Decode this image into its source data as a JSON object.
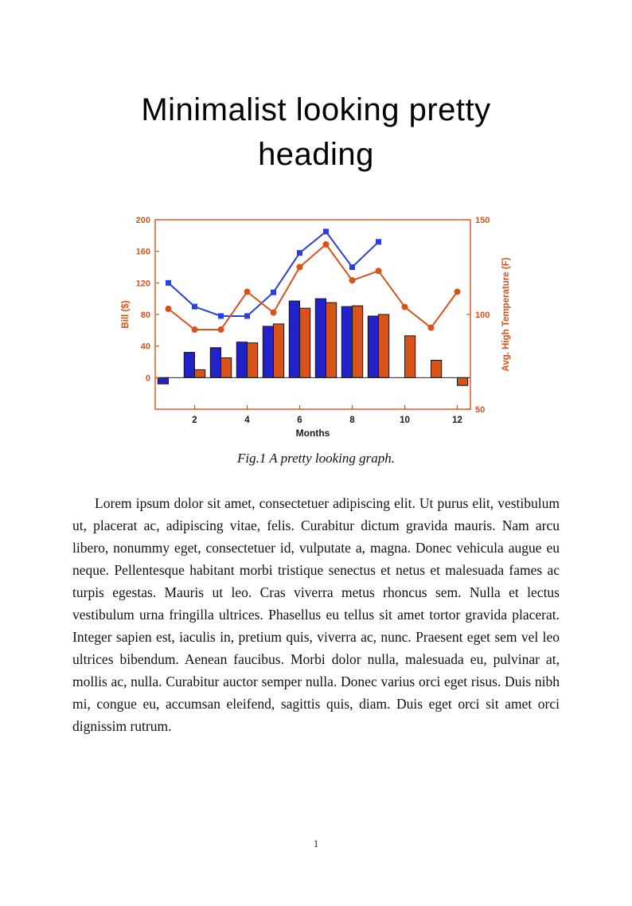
{
  "page": {
    "heading": "Minimalist looking pretty heading",
    "figure_caption": "Fig.1 A pretty looking graph.",
    "body": "Lorem ipsum dolor sit amet, consectetuer adipiscing elit. Ut purus elit, vestibulum ut, placerat ac, adipiscing vitae, felis. Curabitur dictum gravida mauris. Nam arcu libero, nonummy eget, consectetuer id, vulputate a, magna. Donec vehicula augue eu neque. Pellentesque habitant morbi tristique senectus et netus et malesuada fames ac turpis egestas. Mauris ut leo. Cras viverra metus rhoncus sem. Nulla et lectus vestibulum urna fringilla ultrices. Phasellus eu tellus sit amet tortor gravida placerat. Integer sapien est, iaculis in, pretium quis, viverra ac, nunc. Praesent eget sem vel leo ultrices bibendum. Aenean faucibus. Morbi dolor nulla, malesuada eu, pulvinar at, mollis ac, nulla. Curabitur auctor semper nulla. Donec varius orci eget risus. Duis nibh mi, congue eu, accumsan eleifend, sagittis quis, diam. Duis eget orci sit amet orci dignissim rutrum.",
    "page_number": "1"
  },
  "chart_data": {
    "type": "bar+line",
    "xlabel": "Months",
    "ylabel_left": "Bill ($)",
    "ylabel_right": "Avg. High Temperature (F)",
    "xlim": [
      0.5,
      12.5
    ],
    "x_ticks": [
      2,
      4,
      6,
      8,
      10,
      12
    ],
    "ylim_left": [
      -40,
      200
    ],
    "yticks_left": [
      0,
      40,
      80,
      120,
      160,
      200
    ],
    "ylim_right": [
      50,
      150
    ],
    "yticks_right": [
      50,
      100,
      150
    ],
    "months": [
      1,
      2,
      3,
      4,
      5,
      6,
      7,
      8,
      9,
      10,
      11,
      12
    ],
    "series": [
      {
        "name": "bill-bars-blue",
        "type": "bar",
        "axis": "left",
        "color": "#2222cc",
        "edge": "#151515",
        "values": [
          -8,
          32,
          38,
          45,
          65,
          97,
          100,
          90,
          78,
          null,
          null,
          null
        ]
      },
      {
        "name": "bill-bars-orange",
        "type": "bar",
        "axis": "left",
        "color": "#d95319",
        "edge": "#151515",
        "values": [
          null,
          10,
          25,
          44,
          68,
          88,
          95,
          91,
          80,
          53,
          22,
          -10
        ]
      },
      {
        "name": "bill-line-blue",
        "type": "line",
        "axis": "left",
        "marker": "square",
        "color": "#2a3fe0",
        "values": [
          120,
          90,
          78,
          78,
          108,
          158,
          185,
          140,
          172,
          null,
          null,
          null
        ]
      },
      {
        "name": "temperature-line-orange",
        "type": "line",
        "axis": "right",
        "marker": "circle",
        "color": "#d95319",
        "values": [
          103,
          92,
          92,
          112,
          101,
          125,
          137,
          118,
          123,
          104,
          93,
          112
        ]
      }
    ],
    "axis_color": "#d95319",
    "x_text_color": "#1a1a1a"
  }
}
